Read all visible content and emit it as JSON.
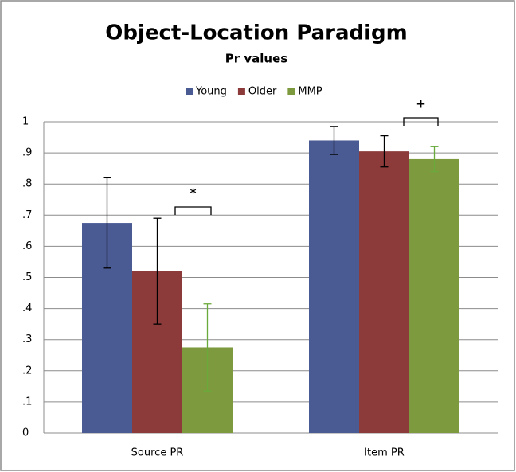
{
  "chart_data": {
    "type": "bar",
    "title": "Object-Location Paradigm",
    "subtitle": "Pr values",
    "categories": [
      "Source PR",
      "Item PR"
    ],
    "series": [
      {
        "name": "Young",
        "color": "#4a5b94",
        "values": [
          0.675,
          0.94
        ],
        "errors": [
          0.145,
          0.045
        ],
        "error_color": "#000000"
      },
      {
        "name": "Older",
        "color": "#8c3a3a",
        "values": [
          0.52,
          0.905
        ],
        "errors": [
          0.17,
          0.05
        ],
        "error_color": "#000000"
      },
      {
        "name": "MMP",
        "color": "#7d9a3f",
        "values": [
          0.275,
          0.88
        ],
        "errors": [
          0.14,
          0.04
        ],
        "error_color": "#6aaa3a"
      }
    ],
    "ylim": [
      0,
      1
    ],
    "yticks": [
      0,
      {
        "value": 0.1,
        "label": ".1"
      },
      {
        "value": 0.2,
        "label": ".2"
      },
      {
        "value": 0.3,
        "label": ".3"
      },
      {
        "value": 0.4,
        "label": ".4"
      },
      {
        "value": 0.5,
        "label": ".5"
      },
      {
        "value": 0.6,
        "label": ".6"
      },
      {
        "value": 0.7,
        "label": ".7"
      },
      {
        "value": 0.8,
        "label": ".8"
      },
      {
        "value": 0.9,
        "label": ".9"
      },
      1
    ],
    "grid": true,
    "legend": "top",
    "annotations": [
      "*",
      "+"
    ]
  }
}
